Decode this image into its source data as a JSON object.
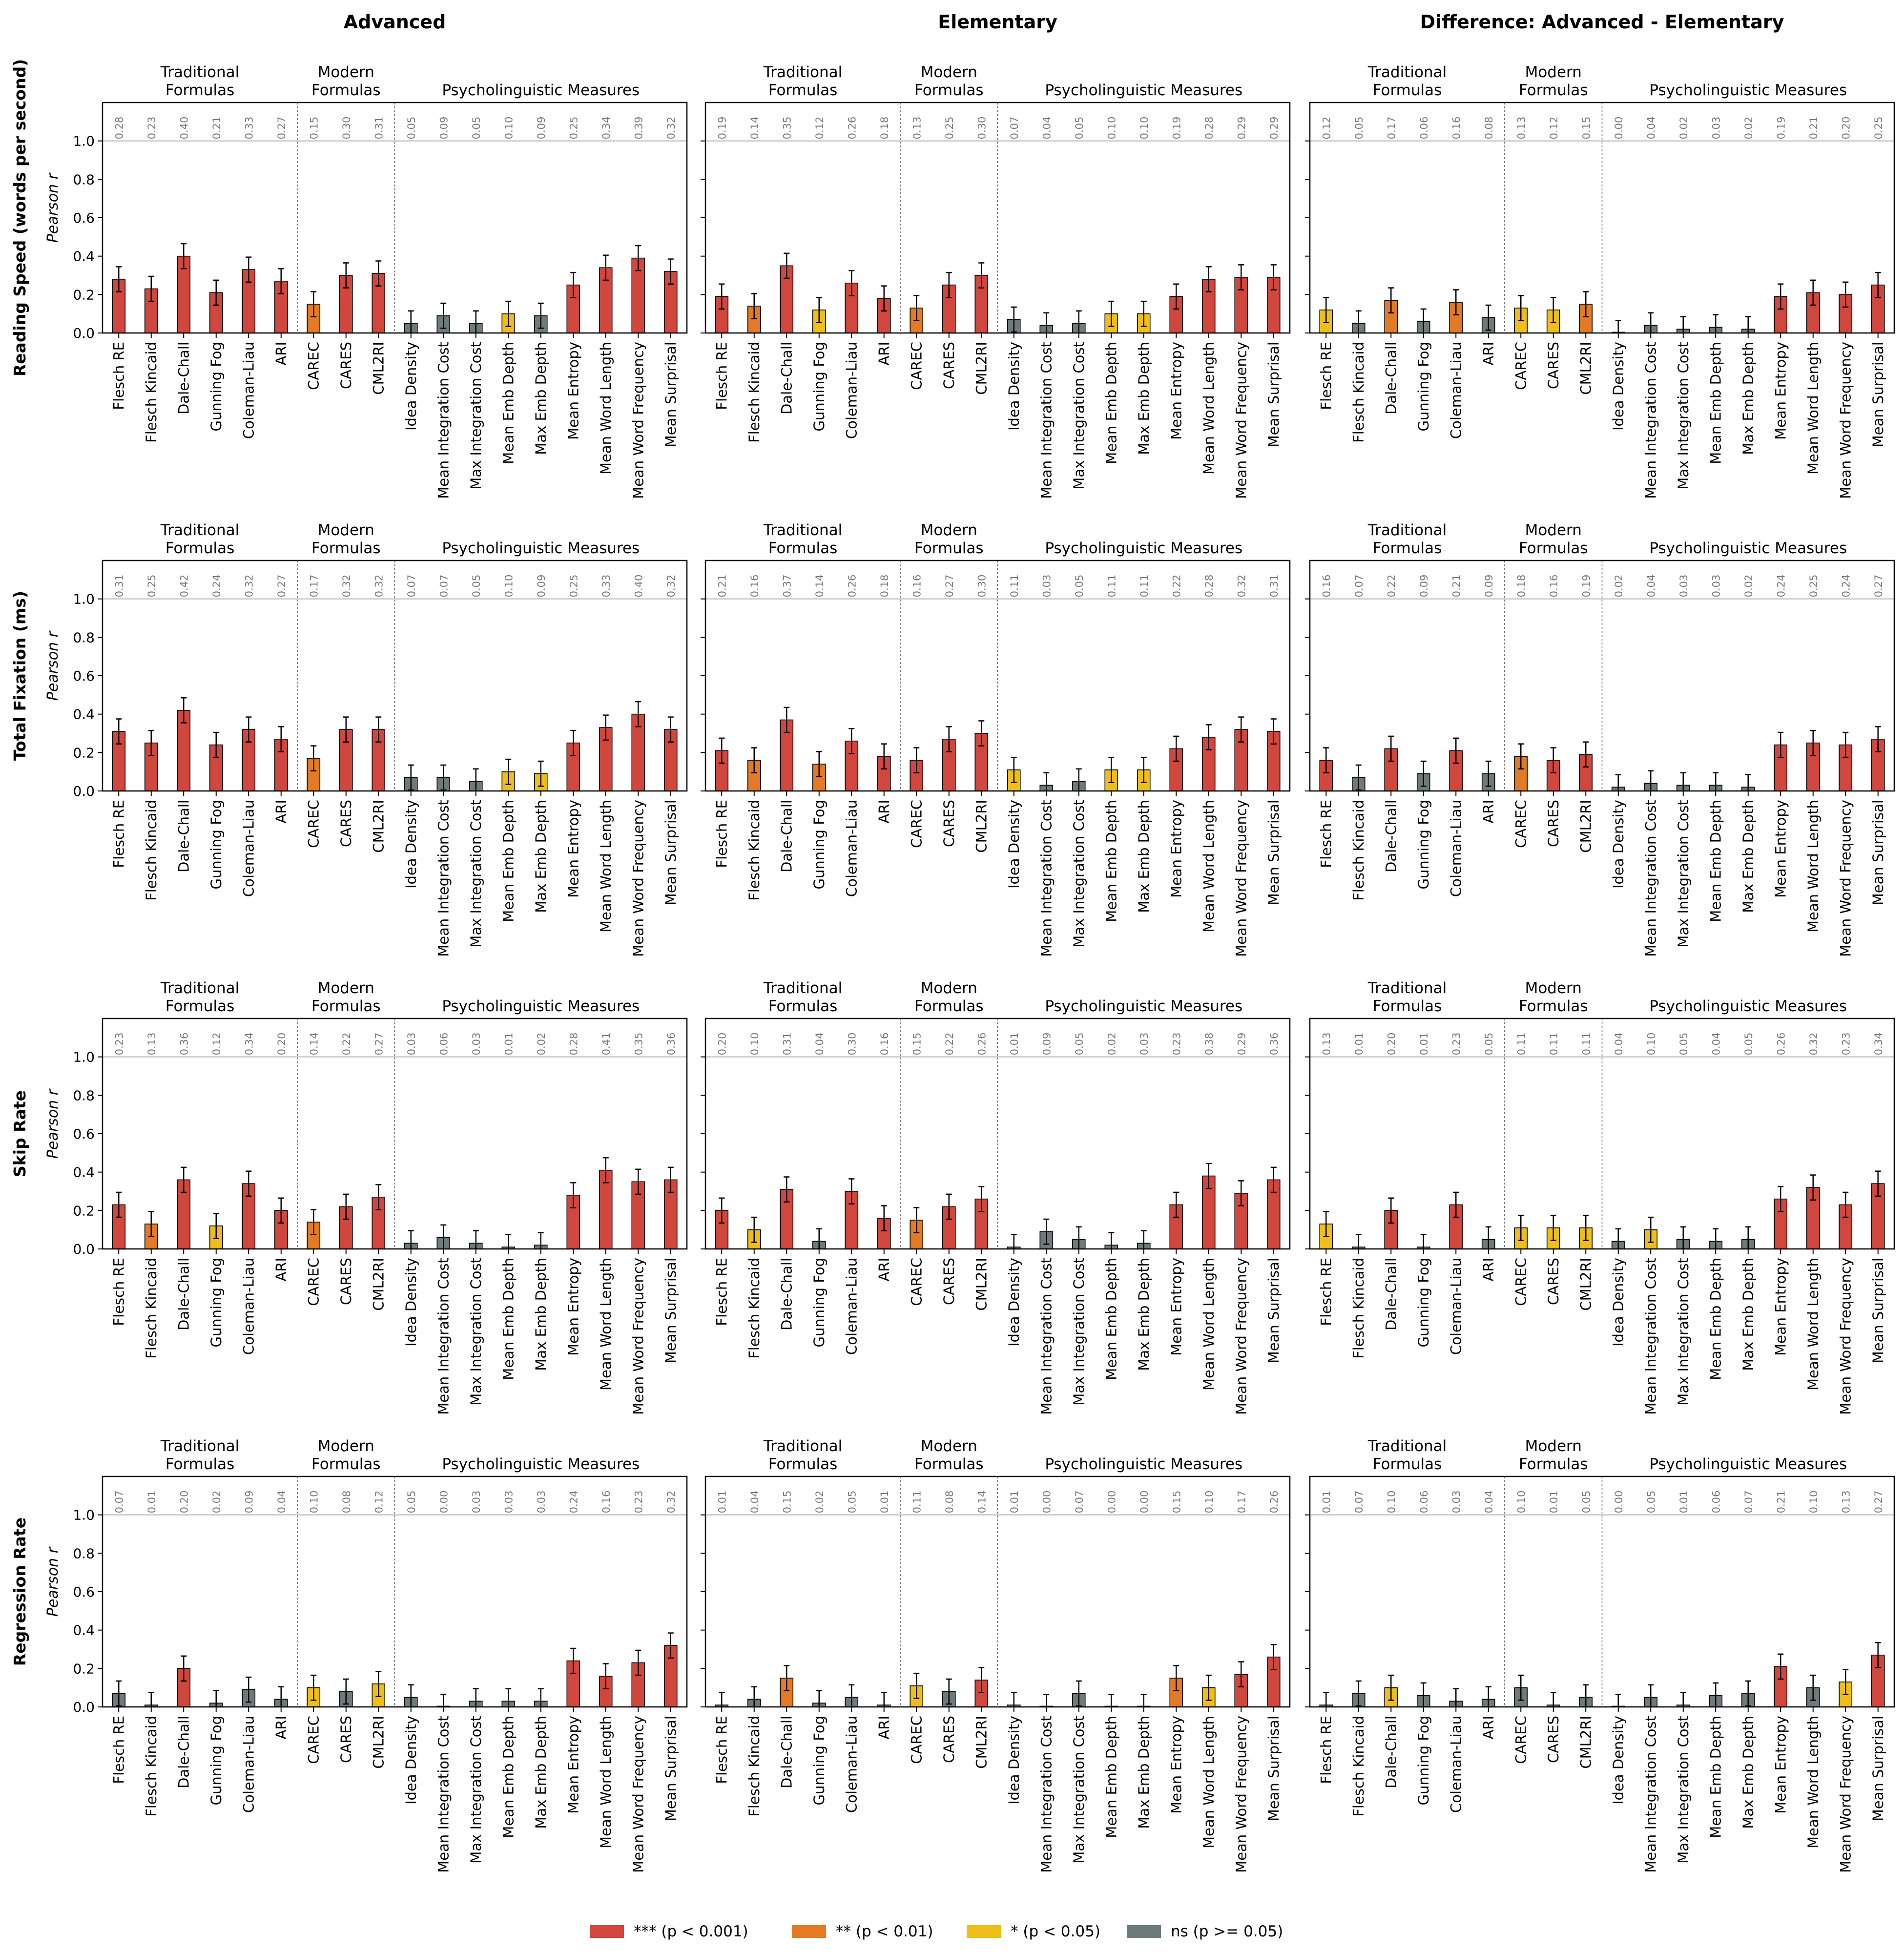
{
  "colors": {
    "sig3": "#d1463d",
    "sig2": "#e47a23",
    "sig1": "#f0be1a",
    "ns": "#6e7b7a",
    "axis": "#000000",
    "ref": "#b0b0b0",
    "rlabel": "#7a7a7a"
  },
  "measures": [
    "Flesch RE",
    "Flesch Kincaid",
    "Dale-Chall",
    "Gunning Fog",
    "Coleman-Liau",
    "ARI",
    "CAREC",
    "CARES",
    "CML2RI",
    "Idea Density",
    "Mean Integration Cost",
    "Max Integration Cost",
    "Mean Emb Depth",
    "Max Emb Depth",
    "Mean Entropy",
    "Mean Word Length",
    "Mean Word Frequency",
    "Mean Surprisal"
  ],
  "groups": [
    {
      "label1": "Traditional",
      "label2": "Formulas"
    },
    {
      "label1": "Modern",
      "label2": "Formulas"
    },
    {
      "label1": "Psycholinguistic Measures",
      "label2": ""
    }
  ],
  "column_titles": [
    "Advanced",
    "Elementary",
    "Difference: Advanced - Elementary"
  ],
  "row_titles": [
    "Reading Speed (words per second)",
    "Total Fixation (ms)",
    "Skip Rate",
    "Regression Rate"
  ],
  "ylabel": "Pearson r",
  "yticks": [
    "0.0",
    "0.2",
    "0.4",
    "0.6",
    "0.8",
    "1.0"
  ],
  "legend": [
    {
      "label": "*** (p < 0.001)",
      "key": "sig3"
    },
    {
      "label": "** (p < 0.01)",
      "key": "sig2"
    },
    {
      "label": "* (p < 0.05)",
      "key": "sig1"
    },
    {
      "label": "ns (p >= 0.05)",
      "key": "ns"
    }
  ],
  "chart_data": [
    {
      "type": "bar",
      "row": "Reading Speed (words per second)",
      "column": "Advanced",
      "ylabel": "Pearson r",
      "ylim": [
        0,
        1.2
      ],
      "values": [
        0.28,
        0.23,
        0.4,
        0.21,
        0.33,
        0.27,
        0.15,
        0.3,
        0.31,
        0.05,
        0.09,
        0.05,
        0.1,
        0.09,
        0.25,
        0.34,
        0.39,
        0.32
      ],
      "value_labels": [
        "0.28",
        "0.23",
        "0.40",
        "0.21",
        "0.33",
        "0.27",
        "0.15",
        "0.30",
        "0.31",
        "0.05",
        "0.09",
        "0.05",
        "0.10",
        "0.09",
        "0.25",
        "0.34",
        "0.39",
        "0.32"
      ],
      "significance": [
        3,
        3,
        3,
        3,
        3,
        3,
        2,
        3,
        3,
        0,
        0,
        0,
        1,
        0,
        3,
        3,
        3,
        3
      ]
    },
    {
      "type": "bar",
      "row": "Reading Speed (words per second)",
      "column": "Elementary",
      "ylabel": "Pearson r",
      "ylim": [
        0,
        1.2
      ],
      "values": [
        0.19,
        0.14,
        0.35,
        0.12,
        0.26,
        0.18,
        0.13,
        0.25,
        0.3,
        0.07,
        0.04,
        0.05,
        0.1,
        0.1,
        0.19,
        0.28,
        0.29,
        0.29
      ],
      "value_labels": [
        "0.19",
        "0.14",
        "0.35",
        "0.12",
        "0.26",
        "0.18",
        "0.13",
        "0.25",
        "0.30",
        "0.07",
        "0.04",
        "0.05",
        "0.10",
        "0.10",
        "0.19",
        "0.28",
        "0.29",
        "0.29"
      ],
      "significance": [
        3,
        2,
        3,
        1,
        3,
        3,
        2,
        3,
        3,
        0,
        0,
        0,
        1,
        1,
        3,
        3,
        3,
        3
      ]
    },
    {
      "type": "bar",
      "row": "Reading Speed (words per second)",
      "column": "Difference: Advanced - Elementary",
      "ylabel": "Pearson r",
      "ylim": [
        0,
        1.2
      ],
      "values": [
        0.12,
        0.05,
        0.17,
        0.06,
        0.16,
        0.08,
        0.13,
        0.12,
        0.15,
        0.0,
        0.04,
        0.02,
        0.03,
        0.02,
        0.19,
        0.21,
        0.2,
        0.25
      ],
      "value_labels": [
        "0.12",
        "0.05",
        "0.17",
        "0.06",
        "0.16",
        "0.08",
        "0.13",
        "0.12",
        "0.15",
        "0.00",
        "0.04",
        "0.02",
        "0.03",
        "0.02",
        "0.19",
        "0.21",
        "0.20",
        "0.25"
      ],
      "significance": [
        1,
        0,
        2,
        0,
        2,
        0,
        1,
        1,
        2,
        0,
        0,
        0,
        0,
        0,
        3,
        3,
        3,
        3
      ]
    },
    {
      "type": "bar",
      "row": "Total Fixation (ms)",
      "column": "Advanced",
      "ylabel": "Pearson r",
      "ylim": [
        0,
        1.2
      ],
      "values": [
        0.31,
        0.25,
        0.42,
        0.24,
        0.32,
        0.27,
        0.17,
        0.32,
        0.32,
        0.07,
        0.07,
        0.05,
        0.1,
        0.09,
        0.25,
        0.33,
        0.4,
        0.32
      ],
      "value_labels": [
        "0.31",
        "0.25",
        "0.42",
        "0.24",
        "0.32",
        "0.27",
        "0.17",
        "0.32",
        "0.32",
        "0.07",
        "0.07",
        "0.05",
        "0.10",
        "0.09",
        "0.25",
        "0.33",
        "0.40",
        "0.32"
      ],
      "significance": [
        3,
        3,
        3,
        3,
        3,
        3,
        2,
        3,
        3,
        0,
        0,
        0,
        1,
        1,
        3,
        3,
        3,
        3
      ]
    },
    {
      "type": "bar",
      "row": "Total Fixation (ms)",
      "column": "Elementary",
      "ylabel": "Pearson r",
      "ylim": [
        0,
        1.2
      ],
      "values": [
        0.21,
        0.16,
        0.37,
        0.14,
        0.26,
        0.18,
        0.16,
        0.27,
        0.3,
        0.11,
        0.03,
        0.05,
        0.11,
        0.11,
        0.22,
        0.28,
        0.32,
        0.31
      ],
      "value_labels": [
        "0.21",
        "0.16",
        "0.37",
        "0.14",
        "0.26",
        "0.18",
        "0.16",
        "0.27",
        "0.30",
        "0.11",
        "0.03",
        "0.05",
        "0.11",
        "0.11",
        "0.22",
        "0.28",
        "0.32",
        "0.31"
      ],
      "significance": [
        3,
        2,
        3,
        2,
        3,
        3,
        3,
        3,
        3,
        1,
        0,
        0,
        1,
        1,
        3,
        3,
        3,
        3
      ]
    },
    {
      "type": "bar",
      "row": "Total Fixation (ms)",
      "column": "Difference: Advanced - Elementary",
      "ylabel": "Pearson r",
      "ylim": [
        0,
        1.2
      ],
      "values": [
        0.16,
        0.07,
        0.22,
        0.09,
        0.21,
        0.09,
        0.18,
        0.16,
        0.19,
        0.02,
        0.04,
        0.03,
        0.03,
        0.02,
        0.24,
        0.25,
        0.24,
        0.27
      ],
      "value_labels": [
        "0.16",
        "0.07",
        "0.22",
        "0.09",
        "0.21",
        "0.09",
        "0.18",
        "0.16",
        "0.19",
        "0.02",
        "0.04",
        "0.03",
        "0.03",
        "0.02",
        "0.24",
        "0.25",
        "0.24",
        "0.27"
      ],
      "significance": [
        3,
        0,
        3,
        0,
        3,
        0,
        2,
        3,
        3,
        0,
        0,
        0,
        0,
        0,
        3,
        3,
        3,
        3
      ]
    },
    {
      "type": "bar",
      "row": "Skip Rate",
      "column": "Advanced",
      "ylabel": "Pearson r",
      "ylim": [
        0,
        1.2
      ],
      "values": [
        0.23,
        0.13,
        0.36,
        0.12,
        0.34,
        0.2,
        0.14,
        0.22,
        0.27,
        0.03,
        0.06,
        0.03,
        0.01,
        0.02,
        0.28,
        0.41,
        0.35,
        0.36
      ],
      "value_labels": [
        "0.23",
        "0.13",
        "0.36",
        "0.12",
        "0.34",
        "0.20",
        "0.14",
        "0.22",
        "0.27",
        "0.03",
        "0.06",
        "0.03",
        "0.01",
        "0.02",
        "0.28",
        "0.41",
        "0.35",
        "0.36"
      ],
      "significance": [
        3,
        2,
        3,
        1,
        3,
        3,
        2,
        3,
        3,
        0,
        0,
        0,
        0,
        0,
        3,
        3,
        3,
        3
      ]
    },
    {
      "type": "bar",
      "row": "Skip Rate",
      "column": "Elementary",
      "ylabel": "Pearson r",
      "ylim": [
        0,
        1.2
      ],
      "values": [
        0.2,
        0.1,
        0.31,
        0.04,
        0.3,
        0.16,
        0.15,
        0.22,
        0.26,
        0.01,
        0.09,
        0.05,
        0.02,
        0.03,
        0.23,
        0.38,
        0.29,
        0.36
      ],
      "value_labels": [
        "0.20",
        "0.10",
        "0.31",
        "0.04",
        "0.30",
        "0.16",
        "0.15",
        "0.22",
        "0.26",
        "0.01",
        "0.09",
        "0.05",
        "0.02",
        "0.03",
        "0.23",
        "0.38",
        "0.29",
        "0.36"
      ],
      "significance": [
        3,
        1,
        3,
        0,
        3,
        3,
        2,
        3,
        3,
        0,
        0,
        0,
        0,
        0,
        3,
        3,
        3,
        3
      ]
    },
    {
      "type": "bar",
      "row": "Skip Rate",
      "column": "Difference: Advanced - Elementary",
      "ylabel": "Pearson r",
      "ylim": [
        0,
        1.2
      ],
      "values": [
        0.13,
        0.01,
        0.2,
        0.01,
        0.23,
        0.05,
        0.11,
        0.11,
        0.11,
        0.04,
        0.1,
        0.05,
        0.04,
        0.05,
        0.26,
        0.32,
        0.23,
        0.34
      ],
      "value_labels": [
        "0.13",
        "0.01",
        "0.20",
        "0.01",
        "0.23",
        "0.05",
        "0.11",
        "0.11",
        "0.11",
        "0.04",
        "0.10",
        "0.05",
        "0.04",
        "0.05",
        "0.26",
        "0.32",
        "0.23",
        "0.34"
      ],
      "significance": [
        1,
        0,
        3,
        0,
        3,
        0,
        1,
        1,
        1,
        0,
        1,
        0,
        0,
        0,
        3,
        3,
        3,
        3
      ]
    },
    {
      "type": "bar",
      "row": "Regression Rate",
      "column": "Advanced",
      "ylabel": "Pearson r",
      "ylim": [
        0,
        1.2
      ],
      "values": [
        0.07,
        0.01,
        0.2,
        0.02,
        0.09,
        0.04,
        0.1,
        0.08,
        0.12,
        0.05,
        0.0,
        0.03,
        0.03,
        0.03,
        0.24,
        0.16,
        0.23,
        0.32
      ],
      "value_labels": [
        "0.07",
        "0.01",
        "0.20",
        "0.02",
        "0.09",
        "0.04",
        "0.10",
        "0.08",
        "0.12",
        "0.05",
        "0.00",
        "0.03",
        "0.03",
        "0.03",
        "0.24",
        "0.16",
        "0.23",
        "0.32"
      ],
      "significance": [
        0,
        0,
        3,
        0,
        0,
        0,
        1,
        0,
        1,
        0,
        0,
        0,
        0,
        0,
        3,
        3,
        3,
        3
      ]
    },
    {
      "type": "bar",
      "row": "Regression Rate",
      "column": "Elementary",
      "ylabel": "Pearson r",
      "ylim": [
        0,
        1.2
      ],
      "values": [
        0.01,
        0.04,
        0.15,
        0.02,
        0.05,
        0.01,
        0.11,
        0.08,
        0.14,
        0.01,
        0.0,
        0.07,
        0.0,
        0.0,
        0.15,
        0.1,
        0.17,
        0.26
      ],
      "value_labels": [
        "0.01",
        "0.04",
        "0.15",
        "0.02",
        "0.05",
        "0.01",
        "0.11",
        "0.08",
        "0.14",
        "0.01",
        "0.00",
        "0.07",
        "0.00",
        "0.00",
        "0.15",
        "0.10",
        "0.17",
        "0.26"
      ],
      "significance": [
        0,
        0,
        2,
        0,
        0,
        0,
        1,
        0,
        3,
        0,
        0,
        0,
        0,
        0,
        2,
        1,
        3,
        3
      ]
    },
    {
      "type": "bar",
      "row": "Regression Rate",
      "column": "Difference: Advanced - Elementary",
      "ylabel": "Pearson r",
      "ylim": [
        0,
        1.2
      ],
      "values": [
        0.01,
        0.07,
        0.1,
        0.06,
        0.03,
        0.04,
        0.1,
        0.01,
        0.05,
        0.0,
        0.05,
        0.01,
        0.06,
        0.07,
        0.21,
        0.1,
        0.13,
        0.27
      ],
      "value_labels": [
        "0.01",
        "0.07",
        "0.10",
        "0.06",
        "0.03",
        "0.04",
        "0.10",
        "0.01",
        "0.05",
        "0.00",
        "0.05",
        "0.01",
        "0.06",
        "0.07",
        "0.21",
        "0.10",
        "0.13",
        "0.27"
      ],
      "significance": [
        0,
        0,
        1,
        0,
        0,
        0,
        0,
        0,
        0,
        0,
        0,
        0,
        0,
        0,
        3,
        0,
        1,
        3
      ]
    }
  ]
}
